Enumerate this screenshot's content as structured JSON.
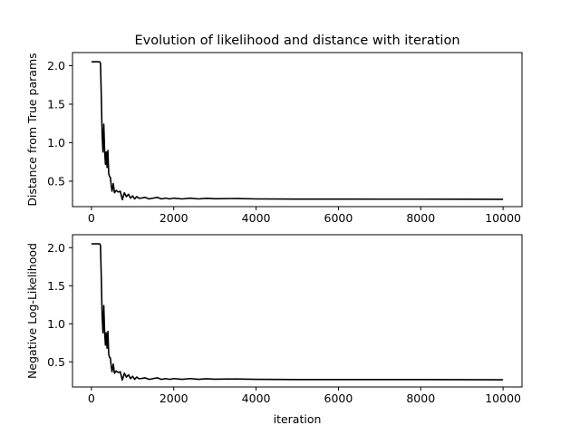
{
  "chart_data": [
    {
      "type": "line",
      "title": "Evolution of likelihood and distance with iteration",
      "xlabel": "",
      "ylabel": "Distance from True params",
      "xlim": [
        -460,
        10460
      ],
      "ylim": [
        0.17,
        2.17
      ],
      "xticks": [
        0,
        2000,
        4000,
        6000,
        8000,
        10000
      ],
      "xtick_labels": [
        "0",
        "2000",
        "4000",
        "6000",
        "8000",
        "10000"
      ],
      "yticks": [
        0.5,
        1.0,
        1.5,
        2.0
      ],
      "ytick_labels": [
        "0.5",
        "1.0",
        "1.5",
        "2.0"
      ],
      "grid": false,
      "color": "#000000",
      "series": [
        {
          "x": [
            0,
            100,
            200,
            220,
            240,
            260,
            280,
            300,
            320,
            340,
            360,
            380,
            400,
            420,
            440,
            460,
            480,
            500,
            530,
            560,
            600,
            650,
            700,
            750,
            800,
            850,
            900,
            950,
            1000,
            1050,
            1100,
            1150,
            1200,
            1300,
            1400,
            1500,
            1600,
            1700,
            1800,
            1900,
            2000,
            2200,
            2400,
            2600,
            2800,
            3000,
            3500,
            4000,
            5000,
            6000,
            7000,
            8000,
            9000,
            10000
          ],
          "y": [
            2.05,
            2.05,
            2.05,
            2.03,
            1.6,
            1.1,
            0.88,
            1.24,
            0.9,
            0.72,
            0.88,
            0.68,
            0.9,
            0.6,
            0.56,
            0.55,
            0.45,
            0.37,
            0.47,
            0.35,
            0.38,
            0.36,
            0.37,
            0.26,
            0.35,
            0.3,
            0.33,
            0.28,
            0.31,
            0.27,
            0.3,
            0.28,
            0.28,
            0.29,
            0.27,
            0.28,
            0.29,
            0.27,
            0.28,
            0.27,
            0.28,
            0.27,
            0.28,
            0.27,
            0.278,
            0.272,
            0.275,
            0.27,
            0.268,
            0.268,
            0.267,
            0.267,
            0.266,
            0.265
          ]
        }
      ]
    },
    {
      "type": "line",
      "title": "",
      "xlabel": "iteration",
      "ylabel": "Negative Log-Likelihood",
      "xlim": [
        -460,
        10460
      ],
      "ylim": [
        0.17,
        2.17
      ],
      "xticks": [
        0,
        2000,
        4000,
        6000,
        8000,
        10000
      ],
      "xtick_labels": [
        "0",
        "2000",
        "4000",
        "6000",
        "8000",
        "10000"
      ],
      "yticks": [
        0.5,
        1.0,
        1.5,
        2.0
      ],
      "ytick_labels": [
        "0.5",
        "1.0",
        "1.5",
        "2.0"
      ],
      "grid": false,
      "color": "#000000",
      "series": [
        {
          "x": [
            0,
            100,
            200,
            220,
            240,
            260,
            280,
            300,
            320,
            340,
            360,
            380,
            400,
            420,
            440,
            460,
            480,
            500,
            530,
            560,
            600,
            650,
            700,
            750,
            800,
            850,
            900,
            950,
            1000,
            1050,
            1100,
            1150,
            1200,
            1300,
            1400,
            1500,
            1600,
            1700,
            1800,
            1900,
            2000,
            2200,
            2400,
            2600,
            2800,
            3000,
            3500,
            4000,
            5000,
            6000,
            7000,
            8000,
            9000,
            10000
          ],
          "y": [
            2.05,
            2.05,
            2.05,
            2.03,
            1.6,
            1.1,
            0.88,
            1.24,
            0.9,
            0.72,
            0.88,
            0.68,
            0.9,
            0.6,
            0.56,
            0.55,
            0.45,
            0.37,
            0.47,
            0.35,
            0.38,
            0.36,
            0.37,
            0.26,
            0.35,
            0.3,
            0.33,
            0.28,
            0.31,
            0.27,
            0.3,
            0.28,
            0.28,
            0.29,
            0.27,
            0.28,
            0.29,
            0.27,
            0.28,
            0.27,
            0.28,
            0.27,
            0.28,
            0.27,
            0.278,
            0.272,
            0.275,
            0.27,
            0.268,
            0.268,
            0.267,
            0.267,
            0.266,
            0.265
          ]
        }
      ]
    }
  ]
}
